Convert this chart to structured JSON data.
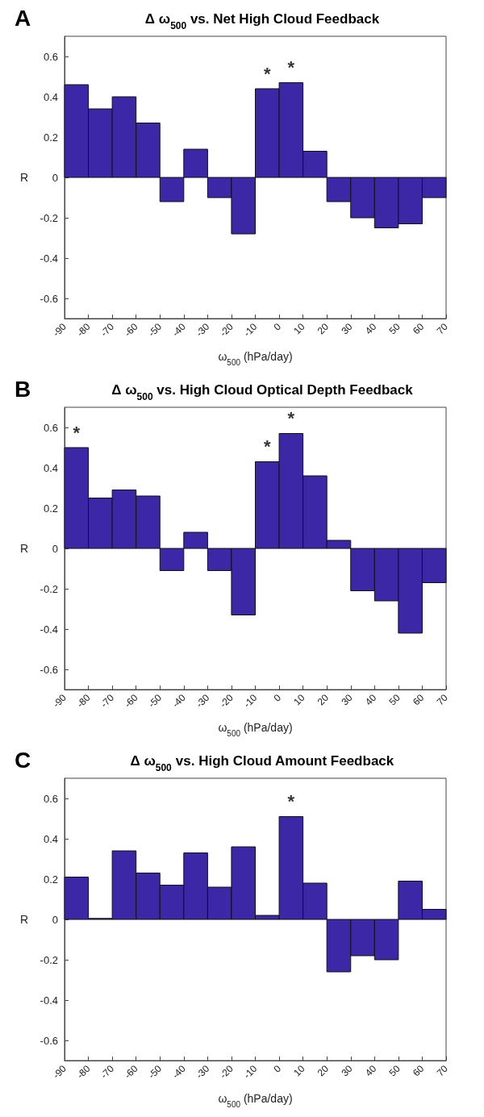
{
  "chart_data": [
    {
      "type": "histogram",
      "title": "Δ ω$_{500}$ vs. Net High Cloud Feedback",
      "xlabel": "ω$_{500}$ (hPa/day)",
      "ylabel": "R",
      "color": "#3c27a6",
      "bins": [
        -90,
        -80,
        -70,
        -60,
        -50,
        -40,
        -30,
        -20,
        -10,
        0,
        10,
        20,
        30,
        40,
        50,
        60,
        70
      ],
      "values": [
        0.46,
        0.34,
        0.4,
        0.27,
        -0.12,
        0.14,
        -0.1,
        -0.28,
        0.44,
        0.47,
        0.13,
        -0.12,
        -0.2,
        -0.25,
        -0.23,
        -0.1
      ],
      "xlim": [
        -90,
        70
      ],
      "xticks": [
        -90,
        -80,
        -70,
        -60,
        -50,
        -40,
        -30,
        -20,
        -10,
        0,
        10,
        20,
        30,
        40,
        50,
        60,
        70
      ],
      "ylim": [
        -0.7,
        0.7
      ],
      "yticks": [
        -0.6,
        -0.4,
        -0.2,
        0,
        0.2,
        0.4,
        0.6
      ],
      "grid": false,
      "annotations": [
        "A",
        {
          "text": "*",
          "x": -5,
          "y": 0.44
        },
        {
          "text": "*",
          "x": 5,
          "y": 0.47
        }
      ]
    },
    {
      "type": "histogram",
      "title": "Δ ω$_{500}$ vs. High Cloud Optical Depth Feedback",
      "xlabel": "ω$_{500}$ (hPa/day)",
      "ylabel": "R",
      "color": "#3c27a6",
      "bins": [
        -90,
        -80,
        -70,
        -60,
        -50,
        -40,
        -30,
        -20,
        -10,
        0,
        10,
        20,
        30,
        40,
        50,
        60,
        70
      ],
      "values": [
        0.5,
        0.25,
        0.29,
        0.26,
        -0.11,
        0.08,
        -0.11,
        -0.33,
        0.43,
        0.57,
        0.36,
        0.04,
        -0.21,
        -0.26,
        -0.42,
        -0.17
      ],
      "xlim": [
        -90,
        70
      ],
      "xticks": [
        -90,
        -80,
        -70,
        -60,
        -50,
        -40,
        -30,
        -20,
        -10,
        0,
        10,
        20,
        30,
        40,
        50,
        60,
        70
      ],
      "ylim": [
        -0.7,
        0.7
      ],
      "yticks": [
        -0.6,
        -0.4,
        -0.2,
        0,
        0.2,
        0.4,
        0.6
      ],
      "grid": false,
      "annotations": [
        "B",
        {
          "text": "*",
          "x": -85,
          "y": 0.5
        },
        {
          "text": "*",
          "x": -5,
          "y": 0.43
        },
        {
          "text": "*",
          "x": 5,
          "y": 0.57
        }
      ]
    },
    {
      "type": "histogram",
      "title": "Δ ω$_{500}$ vs. High Cloud Amount Feedback",
      "xlabel": "ω$_{500}$ (hPa/day)",
      "ylabel": "R",
      "color": "#3c27a6",
      "bins": [
        -90,
        -80,
        -70,
        -60,
        -50,
        -40,
        -30,
        -20,
        -10,
        0,
        10,
        20,
        30,
        40,
        50,
        60,
        70
      ],
      "values": [
        0.21,
        0.005,
        0.34,
        0.23,
        0.17,
        0.33,
        0.16,
        0.36,
        0.02,
        0.51,
        0.18,
        -0.26,
        -0.18,
        -0.2,
        0.19,
        0.05
      ],
      "xlim": [
        -90,
        70
      ],
      "xticks": [
        -90,
        -80,
        -70,
        -60,
        -50,
        -40,
        -30,
        -20,
        -10,
        0,
        10,
        20,
        30,
        40,
        50,
        60,
        70
      ],
      "ylim": [
        -0.7,
        0.7
      ],
      "yticks": [
        -0.6,
        -0.4,
        -0.2,
        0,
        0.2,
        0.4,
        0.6
      ],
      "grid": false,
      "annotations": [
        "C",
        {
          "text": "*",
          "x": 5,
          "y": 0.51
        }
      ]
    }
  ]
}
